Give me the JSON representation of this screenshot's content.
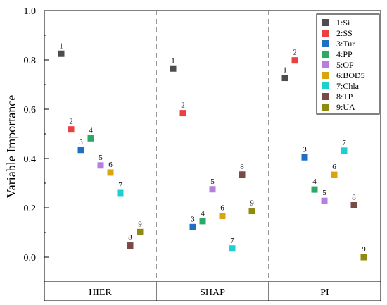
{
  "chart_data": {
    "type": "scatter",
    "ylabel": "Variable Importance",
    "ylim": [
      -0.1,
      1.0
    ],
    "yticks": [
      "0.0",
      "0.2",
      "0.4",
      "0.6",
      "0.8",
      "1.0"
    ],
    "ytick_values": [
      0.0,
      0.2,
      0.4,
      0.6,
      0.8,
      1.0
    ],
    "groups": [
      "HIER",
      "SHAP",
      "PI"
    ],
    "legend_position": "top-right",
    "grid": false,
    "variables": [
      {
        "id": "1",
        "name": "1:Si",
        "color": "#4d4d4d"
      },
      {
        "id": "2",
        "name": "2:SS",
        "color": "#e8413f"
      },
      {
        "id": "3",
        "name": "3:Tur",
        "color": "#1f6fc5"
      },
      {
        "id": "4",
        "name": "4:PP",
        "color": "#2ea866"
      },
      {
        "id": "5",
        "name": "5:OP",
        "color": "#b57ee0"
      },
      {
        "id": "6",
        "name": "6:BOD5",
        "color": "#d9a40f"
      },
      {
        "id": "7",
        "name": "7:Chla",
        "color": "#1ecfd0"
      },
      {
        "id": "8",
        "name": "8:TP",
        "color": "#7a4a47"
      },
      {
        "id": "9",
        "name": "9:UA",
        "color": "#8f8a12"
      }
    ],
    "series": [
      {
        "group": "HIER",
        "values": [
          0.825,
          0.518,
          0.435,
          0.482,
          0.372,
          0.343,
          0.26,
          0.047,
          0.102
        ]
      },
      {
        "group": "SHAP",
        "values": [
          0.765,
          0.584,
          0.122,
          0.146,
          0.275,
          0.167,
          0.035,
          0.335,
          0.187
        ]
      },
      {
        "group": "PI",
        "values": [
          0.727,
          0.798,
          0.405,
          0.274,
          0.228,
          0.334,
          0.432,
          0.21,
          0.0
        ]
      }
    ]
  }
}
